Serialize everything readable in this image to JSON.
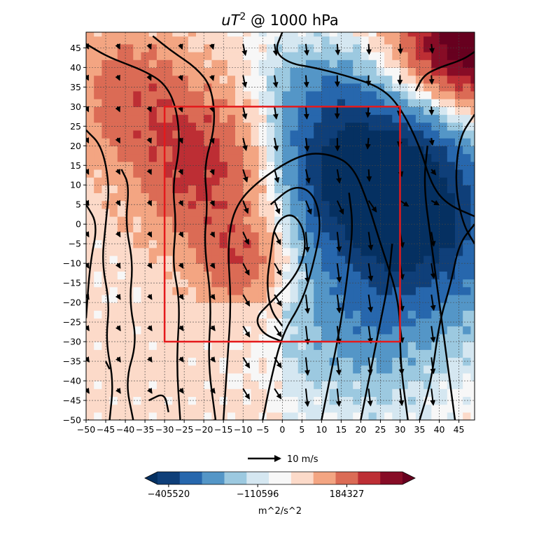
{
  "chart_data": {
    "type": "heatmap",
    "title_base": "uT",
    "title_sup": "2",
    "title_rest": " @ 1000 hPa",
    "xlim": [
      -50,
      49
    ],
    "ylim": [
      -50,
      49
    ],
    "x_ticks": [
      -50,
      -45,
      -40,
      -35,
      -30,
      -25,
      -20,
      -15,
      -10,
      -5,
      0,
      5,
      10,
      15,
      20,
      25,
      30,
      35,
      40,
      45
    ],
    "y_ticks": [
      45,
      40,
      35,
      30,
      25,
      20,
      15,
      10,
      5,
      0,
      -5,
      -10,
      -15,
      -20,
      -25,
      -30,
      -35,
      -40,
      -45,
      -50
    ],
    "grid": true,
    "highlight_box": {
      "x": [
        -30,
        30
      ],
      "y": [
        -30,
        30
      ],
      "color": "#e41a1c"
    },
    "quiver_key": {
      "label": "10 m/s",
      "value": 10
    },
    "colorbar": {
      "tick_labels": [
        "−405520",
        "−110596",
        "184327"
      ],
      "units": "m^2/s^2",
      "colors": [
        "#053061",
        "#0f3f79",
        "#2767ad",
        "#5496c7",
        "#9cc9e0",
        "#d5e7f1",
        "#f7f7f7",
        "#fcdac9",
        "#f3a582",
        "#db6b55",
        "#bd2e34",
        "#870c26",
        "#67001f"
      ]
    },
    "field": {
      "description": "uT^2 at 1000 hPa on a -50..49 grid",
      "negative_center": [
        25,
        8
      ],
      "positive_bands": [
        "west",
        "north-east corner"
      ]
    }
  }
}
